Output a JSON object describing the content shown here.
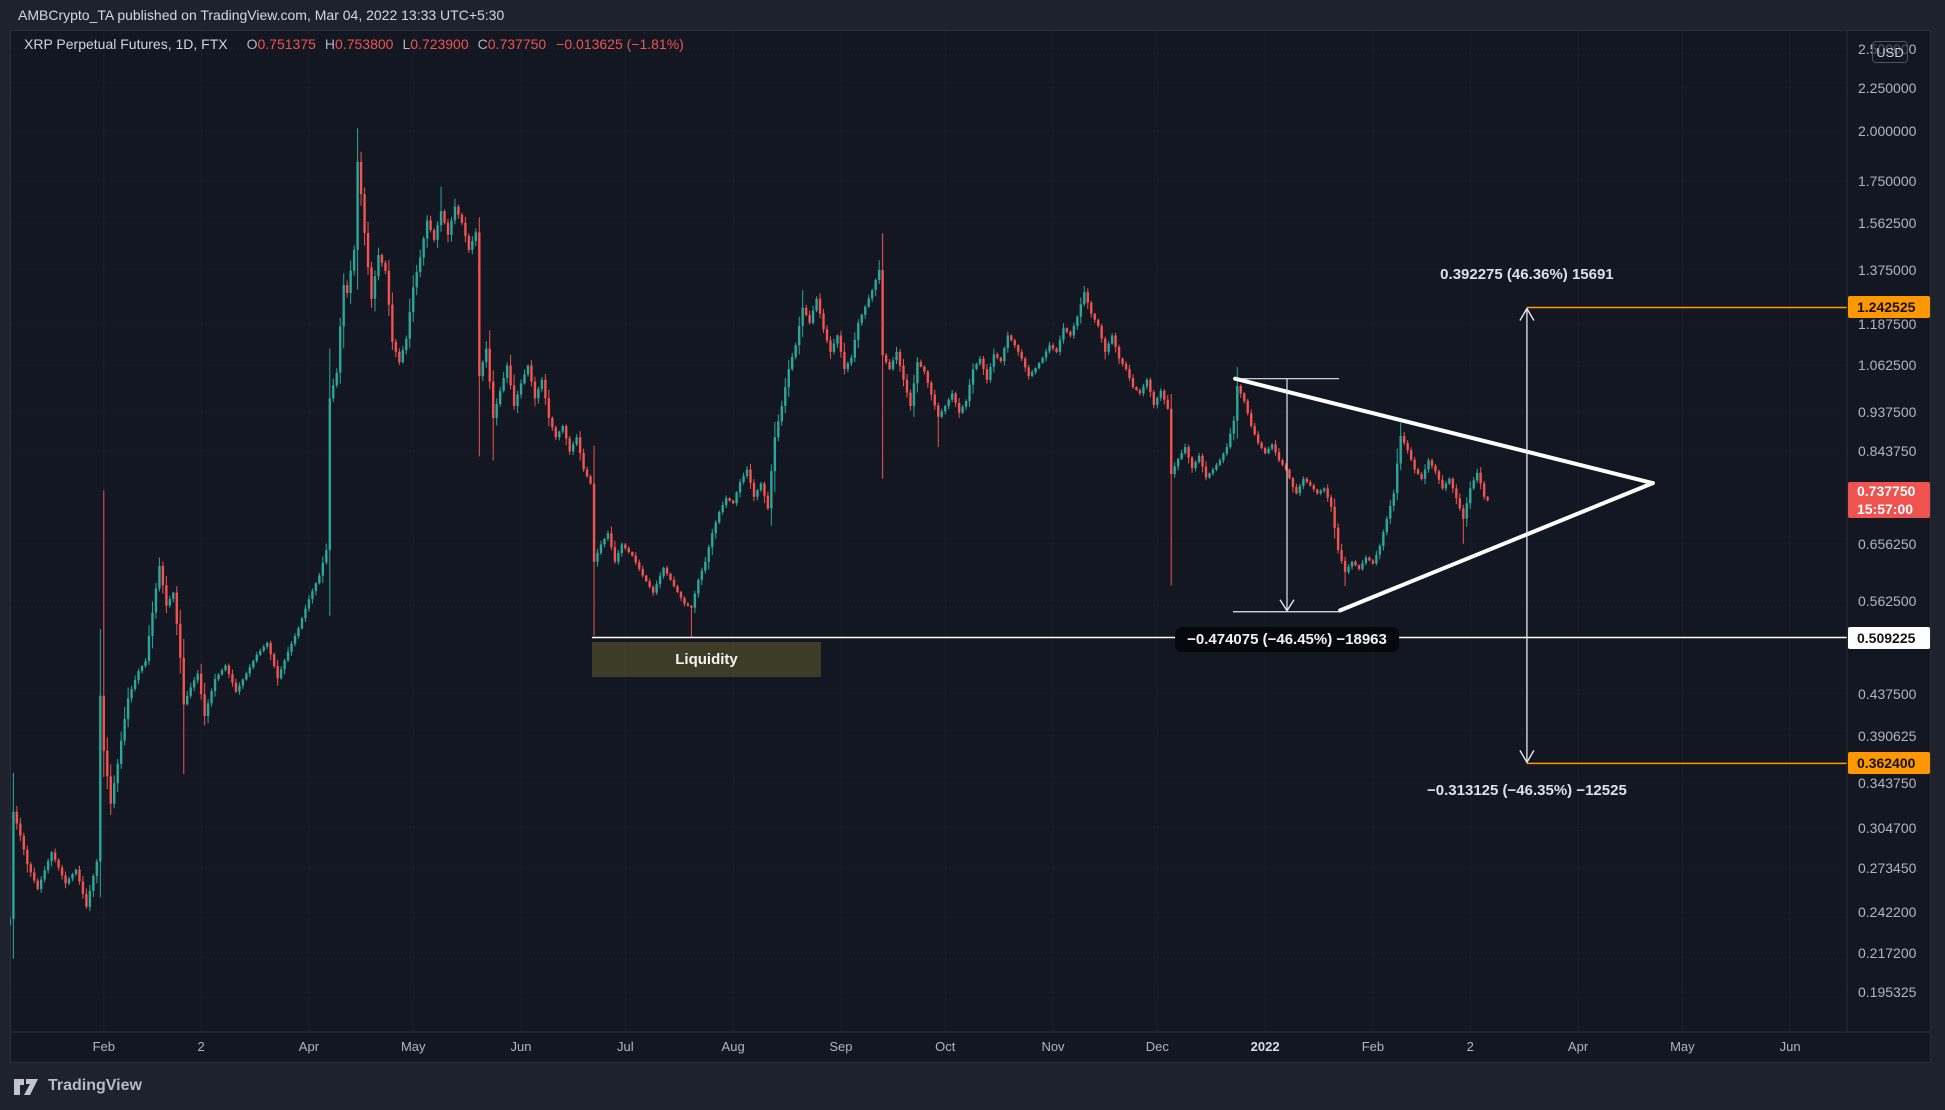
{
  "header": {
    "publish_line": "AMBCrypto_TA published on TradingView.com, Mar 04, 2022 13:33 UTC+5:30"
  },
  "legend": {
    "title": "XRP Perpetual Futures, 1D, FTX",
    "fields": [
      {
        "label": "O",
        "value": "0.751375"
      },
      {
        "label": "H",
        "value": "0.753800"
      },
      {
        "label": "L",
        "value": "0.723900"
      },
      {
        "label": "C",
        "value": "0.737750"
      }
    ],
    "change": "−0.013625 (−1.81%)"
  },
  "price_axis": {
    "currency": "USD",
    "ticks": [
      "2.500000",
      "2.250000",
      "2.000000",
      "1.750000",
      "1.562500",
      "1.375000",
      "1.187500",
      "1.062500",
      "0.937500",
      "0.843750",
      "0.656250",
      "0.562500",
      "0.437500",
      "0.390625",
      "0.343750",
      "0.304700",
      "0.273450",
      "0.242200",
      "0.217200",
      "0.195325"
    ],
    "floating_labels": [
      {
        "text": "1.242525",
        "price": 1.242525,
        "bg": "#ff9800",
        "fg": "#131313"
      },
      {
        "text": "0.737750",
        "sub": "15:57:00",
        "price": 0.73775,
        "bg": "#ef5350",
        "fg": "#ffffff"
      },
      {
        "text": "0.509225",
        "price": 0.509225,
        "bg": "#ffffff",
        "fg": "#131313"
      },
      {
        "text": "0.362400",
        "price": 0.3624,
        "bg": "#ff9800",
        "fg": "#131313"
      }
    ]
  },
  "time_axis": {
    "ticks": [
      {
        "label": "Feb",
        "day": 31
      },
      {
        "label": "2",
        "day": 59
      },
      {
        "label": "Apr",
        "day": 90
      },
      {
        "label": "May",
        "day": 120
      },
      {
        "label": "Jun",
        "day": 151
      },
      {
        "label": "Jul",
        "day": 181
      },
      {
        "label": "Aug",
        "day": 212
      },
      {
        "label": "Sep",
        "day": 243
      },
      {
        "label": "Oct",
        "day": 273
      },
      {
        "label": "Nov",
        "day": 304
      },
      {
        "label": "Dec",
        "day": 334
      },
      {
        "label": "2022",
        "day": 365,
        "bold": true
      },
      {
        "label": "Feb",
        "day": 396
      },
      {
        "label": "2",
        "day": 424
      },
      {
        "label": "Apr",
        "day": 455
      },
      {
        "label": "May",
        "day": 485
      },
      {
        "label": "Jun",
        "day": 516
      }
    ]
  },
  "drawings": {
    "liquidity": {
      "label": "Liquidity",
      "day_start": 171.4,
      "day_end": 237.3,
      "price_top": 0.503,
      "price_bottom": 0.4575,
      "fill": "#3d3c26"
    },
    "support_line": {
      "price": 0.509225,
      "day_start": 171.4,
      "color": "#ffffff"
    },
    "measure_down": {
      "day": 371.3,
      "price_top": 1.025,
      "price_bottom": 0.546,
      "label": "−0.474075 (−46.45%) −18963"
    },
    "pennant": {
      "color": "#ffffff",
      "upper_start": {
        "day": 356.4,
        "price": 1.025
      },
      "lower_start": {
        "day": 386.6,
        "price": 0.548
      },
      "apex": {
        "day": 476.5,
        "price": 0.773
      }
    },
    "projection_up": {
      "day": 440.3,
      "price": 1.242525,
      "label": "0.392275 (46.36%) 15691",
      "color": "#ff9800"
    },
    "projection_down": {
      "day": 440.3,
      "price": 0.3624,
      "label": "−0.313125 (−46.35%) −12525",
      "color": "#ff9800"
    }
  },
  "chart_data": {
    "type": "candlestick",
    "symbol": "XRP Perpetual Futures",
    "interval": "1D",
    "exchange": "FTX",
    "scale": "log",
    "start_date_day0": "2021-01-01",
    "last_candle": {
      "date": "2022-03-04",
      "open": 0.751375,
      "high": 0.7538,
      "low": 0.7239,
      "close": 0.73775
    },
    "up_color": "#2ba79a",
    "down_color": "#f05350",
    "waypoints": [
      [
        4,
        0.238
      ],
      [
        5,
        0.318
      ],
      [
        7,
        0.298
      ],
      [
        9,
        0.276
      ],
      [
        12,
        0.258
      ],
      [
        16,
        0.285
      ],
      [
        20,
        0.262
      ],
      [
        23,
        0.272
      ],
      [
        26,
        0.246
      ],
      [
        29,
        0.278
      ],
      [
        30,
        0.435
      ],
      [
        31,
        0.375
      ],
      [
        33,
        0.325
      ],
      [
        35,
        0.362
      ],
      [
        38,
        0.432
      ],
      [
        41,
        0.465
      ],
      [
        43,
        0.478
      ],
      [
        45,
        0.545
      ],
      [
        47,
        0.618
      ],
      [
        49,
        0.555
      ],
      [
        51,
        0.575
      ],
      [
        53,
        0.482
      ],
      [
        54,
        0.425
      ],
      [
        56,
        0.445
      ],
      [
        58,
        0.462
      ],
      [
        60,
        0.412
      ],
      [
        63,
        0.455
      ],
      [
        66,
        0.472
      ],
      [
        69,
        0.44
      ],
      [
        72,
        0.462
      ],
      [
        75,
        0.486
      ],
      [
        78,
        0.502
      ],
      [
        81,
        0.456
      ],
      [
        84,
        0.49
      ],
      [
        87,
        0.522
      ],
      [
        90,
        0.565
      ],
      [
        93,
        0.602
      ],
      [
        95,
        0.645
      ],
      [
        96,
        0.972
      ],
      [
        98,
        1.042
      ],
      [
        100,
        1.32
      ],
      [
        101,
        1.292
      ],
      [
        103,
        1.452
      ],
      [
        104,
        1.842
      ],
      [
        105,
        1.688
      ],
      [
        106,
        1.52
      ],
      [
        107,
        1.385
      ],
      [
        108,
        1.272
      ],
      [
        110,
        1.432
      ],
      [
        112,
        1.372
      ],
      [
        114,
        1.132
      ],
      [
        116,
        1.072
      ],
      [
        118,
        1.142
      ],
      [
        120,
        1.312
      ],
      [
        122,
        1.422
      ],
      [
        124,
        1.572
      ],
      [
        126,
        1.492
      ],
      [
        128,
        1.612
      ],
      [
        130,
        1.512
      ],
      [
        132,
        1.632
      ],
      [
        134,
        1.562
      ],
      [
        136,
        1.452
      ],
      [
        138,
        1.522
      ],
      [
        139,
        1.032
      ],
      [
        141,
        1.112
      ],
      [
        143,
        0.922
      ],
      [
        145,
        0.992
      ],
      [
        147,
        1.062
      ],
      [
        149,
        0.952
      ],
      [
        151,
        1.012
      ],
      [
        153,
        1.062
      ],
      [
        155,
        0.972
      ],
      [
        157,
        1.022
      ],
      [
        159,
        0.922
      ],
      [
        161,
        0.875
      ],
      [
        163,
        0.902
      ],
      [
        165,
        0.842
      ],
      [
        167,
        0.875
      ],
      [
        169,
        0.802
      ],
      [
        171,
        0.772
      ],
      [
        172,
        0.625
      ],
      [
        174,
        0.655
      ],
      [
        176,
        0.675
      ],
      [
        178,
        0.625
      ],
      [
        180,
        0.655
      ],
      [
        183,
        0.635
      ],
      [
        186,
        0.602
      ],
      [
        189,
        0.575
      ],
      [
        192,
        0.615
      ],
      [
        195,
        0.585
      ],
      [
        198,
        0.558
      ],
      [
        200,
        0.552
      ],
      [
        202,
        0.595
      ],
      [
        204,
        0.625
      ],
      [
        206,
        0.675
      ],
      [
        208,
        0.715
      ],
      [
        210,
        0.742
      ],
      [
        212,
        0.732
      ],
      [
        214,
        0.775
      ],
      [
        216,
        0.802
      ],
      [
        218,
        0.745
      ],
      [
        220,
        0.772
      ],
      [
        222,
        0.722
      ],
      [
        224,
        0.875
      ],
      [
        226,
        0.952
      ],
      [
        228,
        1.052
      ],
      [
        230,
        1.122
      ],
      [
        232,
        1.242
      ],
      [
        234,
        1.192
      ],
      [
        236,
        1.272
      ],
      [
        238,
        1.172
      ],
      [
        240,
        1.102
      ],
      [
        242,
        1.152
      ],
      [
        244,
        1.052
      ],
      [
        246,
        1.085
      ],
      [
        248,
        1.192
      ],
      [
        250,
        1.245
      ],
      [
        252,
        1.302
      ],
      [
        254,
        1.375
      ],
      [
        255,
        1.092
      ],
      [
        257,
        1.052
      ],
      [
        259,
        1.102
      ],
      [
        261,
        1.022
      ],
      [
        263,
        0.952
      ],
      [
        265,
        1.072
      ],
      [
        267,
        1.045
      ],
      [
        269,
        0.982
      ],
      [
        271,
        0.925
      ],
      [
        273,
        0.952
      ],
      [
        275,
        0.985
      ],
      [
        277,
        0.935
      ],
      [
        279,
        0.965
      ],
      [
        281,
        1.052
      ],
      [
        283,
        1.082
      ],
      [
        285,
        1.022
      ],
      [
        287,
        1.095
      ],
      [
        289,
        1.075
      ],
      [
        291,
        1.152
      ],
      [
        293,
        1.122
      ],
      [
        295,
        1.082
      ],
      [
        297,
        1.032
      ],
      [
        299,
        1.055
      ],
      [
        301,
        1.085
      ],
      [
        303,
        1.122
      ],
      [
        305,
        1.102
      ],
      [
        307,
        1.175
      ],
      [
        309,
        1.152
      ],
      [
        311,
        1.212
      ],
      [
        313,
        1.295
      ],
      [
        315,
        1.222
      ],
      [
        317,
        1.182
      ],
      [
        319,
        1.102
      ],
      [
        321,
        1.152
      ],
      [
        323,
        1.082
      ],
      [
        325,
        1.052
      ],
      [
        327,
        1.002
      ],
      [
        329,
        0.985
      ],
      [
        331,
        1.022
      ],
      [
        333,
        0.955
      ],
      [
        335,
        0.992
      ],
      [
        337,
        0.945
      ],
      [
        338,
        0.792
      ],
      [
        340,
        0.825
      ],
      [
        342,
        0.852
      ],
      [
        344,
        0.805
      ],
      [
        346,
        0.832
      ],
      [
        348,
        0.785
      ],
      [
        350,
        0.802
      ],
      [
        352,
        0.822
      ],
      [
        354,
        0.852
      ],
      [
        356,
        0.915
      ],
      [
        357,
        1.005
      ],
      [
        359,
        0.965
      ],
      [
        361,
        0.902
      ],
      [
        363,
        0.862
      ],
      [
        365,
        0.838
      ],
      [
        367,
        0.858
      ],
      [
        369,
        0.822
      ],
      [
        371,
        0.802
      ],
      [
        373,
        0.765
      ],
      [
        374,
        0.752
      ],
      [
        376,
        0.782
      ],
      [
        378,
        0.768
      ],
      [
        380,
        0.752
      ],
      [
        382,
        0.762
      ],
      [
        384,
        0.725
      ],
      [
        386,
        0.645
      ],
      [
        388,
        0.608
      ],
      [
        390,
        0.625
      ],
      [
        392,
        0.613
      ],
      [
        394,
        0.632
      ],
      [
        396,
        0.622
      ],
      [
        398,
        0.652
      ],
      [
        400,
        0.702
      ],
      [
        402,
        0.752
      ],
      [
        404,
        0.878
      ],
      [
        406,
        0.845
      ],
      [
        408,
        0.802
      ],
      [
        410,
        0.782
      ],
      [
        412,
        0.822
      ],
      [
        414,
        0.798
      ],
      [
        416,
        0.762
      ],
      [
        418,
        0.782
      ],
      [
        420,
        0.742
      ],
      [
        422,
        0.702
      ],
      [
        424,
        0.762
      ],
      [
        426,
        0.795
      ],
      [
        427,
        0.772
      ],
      [
        428,
        0.745
      ],
      [
        429,
        0.73775
      ]
    ],
    "spikes": [
      {
        "day": 5,
        "high": 0.345
      },
      {
        "day": 30,
        "high": 0.458
      },
      {
        "day": 31,
        "high": 0.758
      },
      {
        "day": 54,
        "low": 0.352
      },
      {
        "day": 96,
        "high": 1.112
      },
      {
        "day": 104,
        "high": 1.966
      },
      {
        "day": 128,
        "high": 1.722
      },
      {
        "day": 139,
        "low": 0.882
      },
      {
        "day": 143,
        "low": 0.822
      },
      {
        "day": 172,
        "low": 0.512
      },
      {
        "day": 200,
        "low": 0.5095
      },
      {
        "day": 232,
        "high": 1.302
      },
      {
        "day": 254,
        "high": 1.412
      },
      {
        "day": 255,
        "low": 0.782
      },
      {
        "day": 271,
        "low": 0.852
      },
      {
        "day": 338,
        "low": 0.586
      },
      {
        "day": 357,
        "high": 1.032
      },
      {
        "day": 388,
        "low": 0.585
      },
      {
        "day": 404,
        "high": 0.91
      },
      {
        "day": 422,
        "low": 0.656
      }
    ]
  },
  "footer": {
    "brand": "TradingView"
  }
}
